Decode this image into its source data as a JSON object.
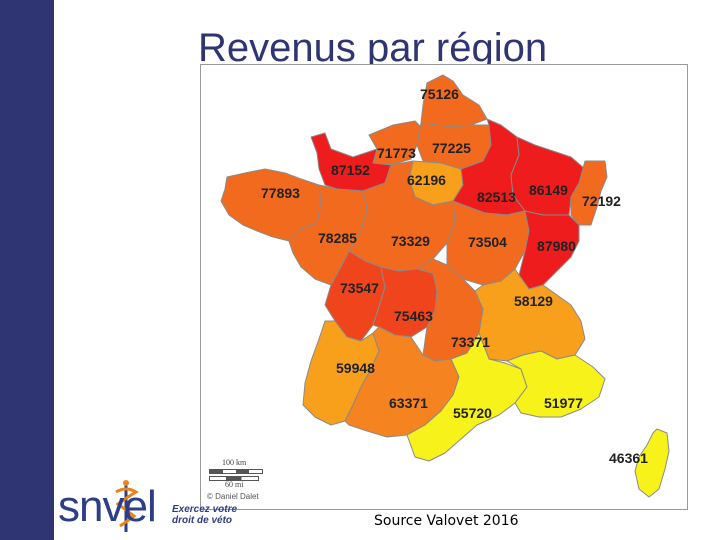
{
  "title": "Revenus par région",
  "source": "Source Valovet 2016",
  "logo": {
    "wordmark": "snvel",
    "tagline_line1": "Exercez votre",
    "tagline_line2": "droit de véto"
  },
  "map": {
    "credit": "© Daniel Dalet",
    "scale_km": "100 km",
    "scale_mi": "60 mi",
    "colors": {
      "red": "#ee1c1c",
      "red_orange": "#f0451c",
      "dark_orange": "#f26a1e",
      "orange": "#f5831f",
      "light_orange": "#f8a01c",
      "yellow": "#f7f21a"
    },
    "regions": [
      {
        "label": "75126"
      },
      {
        "label": "71773"
      },
      {
        "label": "77225"
      },
      {
        "label": "87152"
      },
      {
        "label": "62196"
      },
      {
        "label": "77893"
      },
      {
        "label": "82513"
      },
      {
        "label": "86149"
      },
      {
        "label": "72192"
      },
      {
        "label": "78285"
      },
      {
        "label": "73329"
      },
      {
        "label": "73504"
      },
      {
        "label": "87980"
      },
      {
        "label": "73547"
      },
      {
        "label": "58129"
      },
      {
        "label": "75463"
      },
      {
        "label": "73371"
      },
      {
        "label": "59948"
      },
      {
        "label": "63371"
      },
      {
        "label": "55720"
      },
      {
        "label": "51977"
      },
      {
        "label": "46361"
      }
    ]
  }
}
